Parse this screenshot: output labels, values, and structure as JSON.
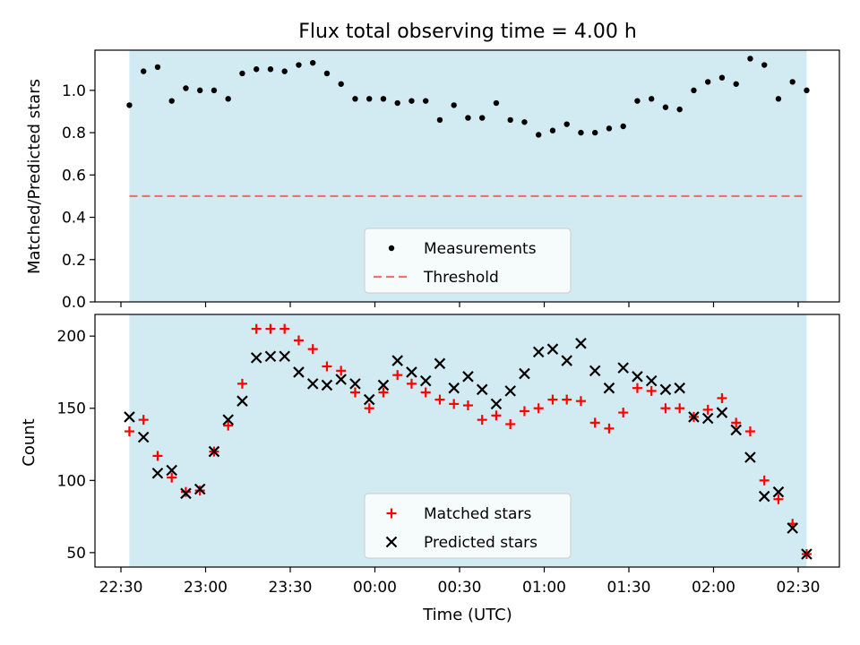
{
  "chart_data": [
    {
      "type": "scatter",
      "title": "Flux total observing time = 4.00 h",
      "xlabel": "",
      "ylabel": "Matched/Predicted stars",
      "ylim": [
        0,
        1.19
      ],
      "yticks": [
        0.0,
        0.2,
        0.4,
        0.6,
        0.8,
        1.0
      ],
      "ytick_labels": [
        "0.0",
        "0.2",
        "0.4",
        "0.6",
        "0.8",
        "1.0"
      ],
      "shaded_range": [
        "22:33",
        "02:33"
      ],
      "shade_color": "#add8e6",
      "threshold": 0.5,
      "threshold_color": "#f07070",
      "legend_position": "lower center",
      "legend": [
        "Measurements",
        "Threshold"
      ],
      "series": [
        {
          "name": "Measurements",
          "marker": "dot",
          "color": "#000000",
          "x": [
            "22:33",
            "22:38",
            "22:43",
            "22:48",
            "22:53",
            "22:58",
            "23:03",
            "23:08",
            "23:13",
            "23:18",
            "23:23",
            "23:28",
            "23:33",
            "23:38",
            "23:43",
            "23:48",
            "23:53",
            "23:58",
            "00:03",
            "00:08",
            "00:13",
            "00:18",
            "00:23",
            "00:28",
            "00:33",
            "00:38",
            "00:43",
            "00:48",
            "00:53",
            "00:58",
            "01:03",
            "01:08",
            "01:13",
            "01:18",
            "01:23",
            "01:28",
            "01:33",
            "01:38",
            "01:43",
            "01:48",
            "01:53",
            "01:58",
            "02:03",
            "02:08",
            "02:13",
            "02:18",
            "02:23",
            "02:28",
            "02:33"
          ],
          "y": [
            0.93,
            1.09,
            1.11,
            0.95,
            1.01,
            1.0,
            1.0,
            0.96,
            1.08,
            1.1,
            1.1,
            1.09,
            1.12,
            1.13,
            1.08,
            1.03,
            0.96,
            0.96,
            0.96,
            0.94,
            0.95,
            0.95,
            0.86,
            0.93,
            0.87,
            0.87,
            0.94,
            0.86,
            0.85,
            0.79,
            0.81,
            0.84,
            0.8,
            0.8,
            0.82,
            0.83,
            0.95,
            0.96,
            0.92,
            0.91,
            1.0,
            1.04,
            1.06,
            1.03,
            1.15,
            1.12,
            0.96,
            1.04,
            1.0
          ]
        }
      ]
    },
    {
      "type": "scatter",
      "title": "",
      "xlabel": "Time (UTC)",
      "ylabel": "Count",
      "ylim": [
        40,
        215
      ],
      "yticks": [
        50,
        100,
        150,
        200
      ],
      "ytick_labels": [
        "50",
        "100",
        "150",
        "200"
      ],
      "xticks": [
        "22:30",
        "23:00",
        "23:30",
        "00:00",
        "00:30",
        "01:00",
        "01:30",
        "02:00",
        "02:30"
      ],
      "shaded_range": [
        "22:33",
        "02:33"
      ],
      "shade_color": "#add8e6",
      "legend_position": "lower center",
      "legend": [
        "Matched stars",
        "Predicted stars"
      ],
      "series": [
        {
          "name": "Matched stars",
          "marker": "plus",
          "color": "#ff0000",
          "x": [
            "22:33",
            "22:38",
            "22:43",
            "22:48",
            "22:53",
            "22:58",
            "23:03",
            "23:08",
            "23:13",
            "23:18",
            "23:23",
            "23:28",
            "23:33",
            "23:38",
            "23:43",
            "23:48",
            "23:53",
            "23:58",
            "00:03",
            "00:08",
            "00:13",
            "00:18",
            "00:23",
            "00:28",
            "00:33",
            "00:38",
            "00:43",
            "00:48",
            "00:53",
            "00:58",
            "01:03",
            "01:08",
            "01:13",
            "01:18",
            "01:23",
            "01:28",
            "01:33",
            "01:38",
            "01:43",
            "01:48",
            "01:53",
            "01:58",
            "02:03",
            "02:08",
            "02:13",
            "02:18",
            "02:23",
            "02:28",
            "02:33"
          ],
          "y": [
            134,
            142,
            117,
            102,
            92,
            93,
            120,
            138,
            167,
            205,
            205,
            205,
            197,
            191,
            179,
            176,
            161,
            150,
            161,
            173,
            167,
            161,
            156,
            153,
            152,
            142,
            145,
            139,
            148,
            150,
            156,
            156,
            155,
            140,
            136,
            147,
            164,
            162,
            150,
            150,
            144,
            149,
            157,
            140,
            134,
            100,
            87,
            70,
            49
          ]
        },
        {
          "name": "Predicted stars",
          "marker": "x",
          "color": "#000000",
          "x": [
            "22:33",
            "22:38",
            "22:43",
            "22:48",
            "22:53",
            "22:58",
            "23:03",
            "23:08",
            "23:13",
            "23:18",
            "23:23",
            "23:28",
            "23:33",
            "23:38",
            "23:43",
            "23:48",
            "23:53",
            "23:58",
            "00:03",
            "00:08",
            "00:13",
            "00:18",
            "00:23",
            "00:28",
            "00:33",
            "00:38",
            "00:43",
            "00:48",
            "00:53",
            "00:58",
            "01:03",
            "01:08",
            "01:13",
            "01:18",
            "01:23",
            "01:28",
            "01:33",
            "01:38",
            "01:43",
            "01:48",
            "01:53",
            "01:58",
            "02:03",
            "02:08",
            "02:13",
            "02:18",
            "02:23",
            "02:28",
            "02:33"
          ],
          "y": [
            144,
            130,
            105,
            107,
            91,
            94,
            120,
            142,
            155,
            185,
            186,
            186,
            175,
            167,
            166,
            170,
            167,
            156,
            166,
            183,
            175,
            169,
            181,
            164,
            172,
            163,
            153,
            162,
            174,
            189,
            191,
            183,
            195,
            176,
            164,
            178,
            172,
            169,
            163,
            164,
            144,
            143,
            147,
            135,
            116,
            89,
            92,
            67,
            49
          ]
        }
      ]
    }
  ]
}
